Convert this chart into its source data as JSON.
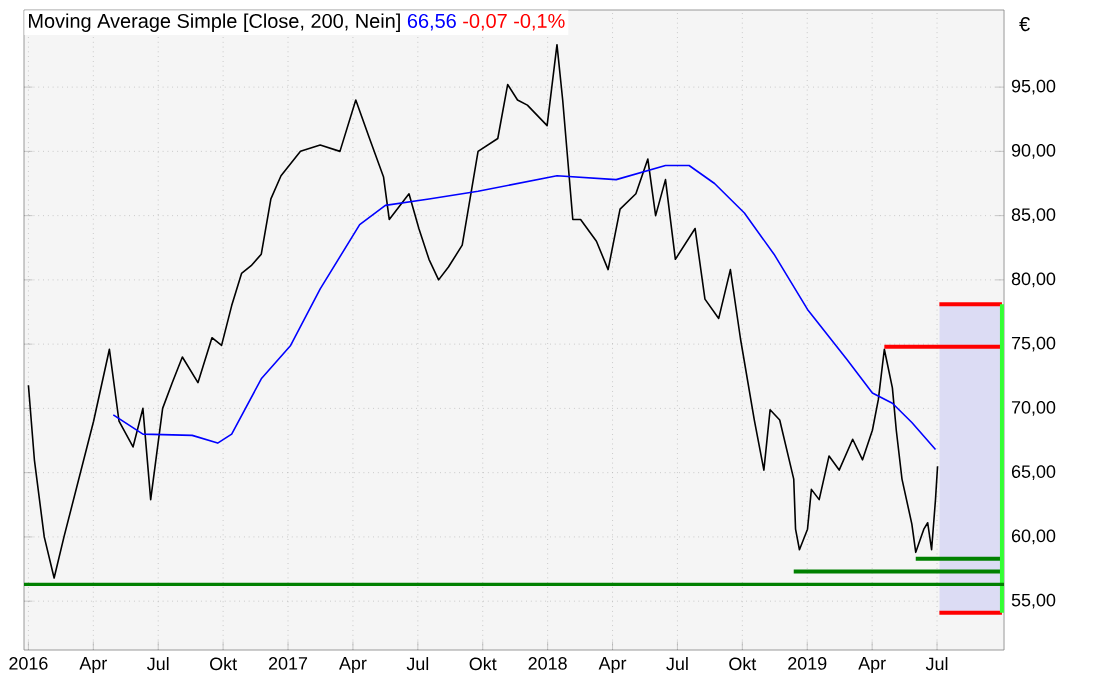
{
  "chart_data": {
    "type": "line",
    "title": "Moving Average Simple [Close, 200, Nein]",
    "annotations": [
      "66,56",
      "-0,07 -0,1%"
    ],
    "ylabel": "€",
    "xlim": [
      2015.983,
      2019.758
    ],
    "ylim": [
      51.2,
      101
    ],
    "xticks": [
      2016,
      {
        "value": 2016.25,
        "label": "Apr"
      },
      {
        "value": 2016.5,
        "label": "Jul"
      },
      {
        "value": 2016.75,
        "label": "Okt"
      },
      2017,
      {
        "value": 2017.25,
        "label": "Apr"
      },
      {
        "value": 2017.5,
        "label": "Jul"
      },
      {
        "value": 2017.75,
        "label": "Okt"
      },
      2018,
      {
        "value": 2018.25,
        "label": "Apr"
      },
      {
        "value": 2018.5,
        "label": "Jul"
      },
      {
        "value": 2018.75,
        "label": "Okt"
      },
      2019,
      {
        "value": 2019.25,
        "label": "Apr"
      },
      {
        "value": 2019.5,
        "label": "Jul"
      }
    ],
    "yticks": [
      {
        "value": 55,
        "label": "55,00"
      },
      {
        "value": 60,
        "label": "60,00"
      },
      {
        "value": 65,
        "label": "65,00"
      },
      {
        "value": 70,
        "label": "70,00"
      },
      {
        "value": 75,
        "label": "75,00"
      },
      {
        "value": 80,
        "label": "80,00"
      },
      {
        "value": 85,
        "label": "85,00"
      },
      {
        "value": 90,
        "label": "90,00"
      },
      {
        "value": 95,
        "label": "95,00"
      }
    ],
    "grid": true,
    "marker": "none",
    "line_style": "solid",
    "ref_lines": [
      {
        "axis": "y",
        "value": 56.3,
        "color": "#008000"
      }
    ],
    "series": [
      {
        "type": "bar",
        "color": "#dcdcf4",
        "x": [
          2019.63
        ],
        "base": [
          54.1
        ],
        "values": [
          24.0
        ]
      },
      {
        "color": "#000000",
        "x": [
          2016.0,
          2016.023,
          2016.061,
          2016.099,
          2016.137,
          2016.175,
          2016.213,
          2016.251,
          2016.312,
          2016.349,
          2016.403,
          2016.441,
          2016.471,
          2016.517,
          2016.554,
          2016.593,
          2016.653,
          2016.707,
          2016.744,
          2016.783,
          2016.821,
          2016.858,
          2016.897,
          2016.934,
          2016.973,
          2017.048,
          2017.124,
          2017.2,
          2017.261,
          2017.314,
          2017.368,
          2017.39,
          2017.466,
          2017.504,
          2017.543,
          2017.58,
          2017.618,
          2017.671,
          2017.732,
          2017.808,
          2017.846,
          2017.884,
          2017.922,
          2017.998,
          2018.036,
          2018.058,
          2018.097,
          2018.127,
          2018.188,
          2018.233,
          2018.279,
          2018.34,
          2018.386,
          2018.416,
          2018.454,
          2018.492,
          2018.568,
          2018.606,
          2018.659,
          2018.704,
          2018.743,
          2018.796,
          2018.833,
          2018.857,
          2018.894,
          2018.948,
          2018.955,
          2018.97,
          2019.001,
          2019.016,
          2019.046,
          2019.084,
          2019.123,
          2019.175,
          2019.213,
          2019.251,
          2019.274,
          2019.297,
          2019.328,
          2019.343,
          2019.365,
          2019.403,
          2019.418,
          2019.449,
          2019.464,
          2019.479,
          2019.494,
          2019.502
        ],
        "values": [
          71.8,
          66,
          60,
          56.8,
          60,
          63,
          66,
          69,
          74.6,
          69,
          67,
          70,
          62.9,
          70,
          72,
          74,
          72,
          75.5,
          74.9,
          78,
          80.5,
          81.1,
          82,
          86.3,
          88.1,
          90,
          90.5,
          90,
          94,
          91,
          88,
          84.7,
          86.7,
          84,
          81.6,
          80,
          81,
          82.7,
          90,
          91,
          95.2,
          94,
          93.6,
          92,
          98.3,
          94,
          84.7,
          84.7,
          83,
          80.8,
          85.5,
          86.7,
          89.4,
          85,
          87.8,
          81.6,
          84,
          78.5,
          77,
          80.8,
          75.4,
          69.1,
          65.2,
          69.9,
          69.1,
          64.5,
          60.6,
          59,
          60.6,
          63.7,
          62.9,
          66.3,
          65.2,
          67.6,
          66,
          68.3,
          70.7,
          74.6,
          71.6,
          68.3,
          64.5,
          61,
          58.8,
          60.6,
          61.1,
          59,
          62.9,
          65.5
        ]
      },
      {
        "color": "#0000ff",
        "x": [
          2016.327,
          2016.441,
          2016.631,
          2016.729,
          2016.783,
          2016.897,
          2017.01,
          2017.124,
          2017.276,
          2017.375,
          2017.543,
          2017.732,
          2017.884,
          2018.036,
          2018.264,
          2018.454,
          2018.545,
          2018.643,
          2018.758,
          2018.872,
          2019.001,
          2019.153,
          2019.251,
          2019.328,
          2019.403,
          2019.494
        ],
        "values": [
          69.5,
          68,
          67.9,
          67.3,
          68,
          72.3,
          74.9,
          79.3,
          84.3,
          85.8,
          86.3,
          86.9,
          87.5,
          88.1,
          87.8,
          88.9,
          88.9,
          87.5,
          85.2,
          82,
          77.7,
          73.8,
          71.2,
          70.4,
          68.9,
          66.8
        ]
      },
      {
        "color": "#ff0000",
        "x": [
          2019.509,
          2019.75
        ],
        "values": [
          78.1,
          78.1
        ]
      },
      {
        "color": "#ff0000",
        "x": [
          2019.297,
          2019.75
        ],
        "values": [
          74.8,
          74.8
        ]
      },
      {
        "color": "#ff0000",
        "x": [
          2019.509,
          2019.75
        ],
        "values": [
          54.1,
          54.1
        ]
      },
      {
        "color": "#008000",
        "x": [
          2018.948,
          2019.75
        ],
        "values": [
          57.3,
          57.3
        ]
      },
      {
        "color": "#008000",
        "x": [
          2019.418,
          2019.75
        ],
        "values": [
          58.3,
          58.3
        ]
      },
      {
        "color": "#33ff33",
        "x": [
          2019.75,
          2019.75
        ],
        "values": [
          54.1,
          78.1
        ]
      }
    ]
  }
}
